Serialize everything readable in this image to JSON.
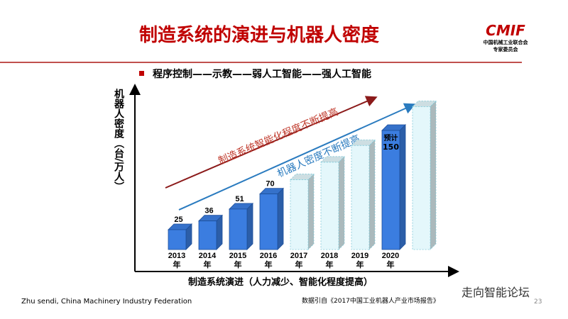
{
  "header": {
    "title": "制造系统的演进与机器人密度",
    "subtitle": "程序控制——示教——弱人工智能——强人工智能",
    "logo": "CMIF",
    "org_line1": "中国机械工业联合会",
    "org_line2": "专家委员会"
  },
  "chart_data": {
    "type": "bar",
    "y_label": "机器人密度（台/万人）",
    "x_label": "制造系统演进（人力减少、智能化程度提高）",
    "categories": [
      "2013年",
      "2014年",
      "2015年",
      "2016年",
      "2017年",
      "2018年",
      "2019年",
      "2020年",
      null
    ],
    "values": [
      25,
      36,
      51,
      70,
      88,
      110,
      131,
      150,
      180
    ],
    "value_labels": [
      "25",
      "36",
      "51",
      "70",
      null,
      null,
      null,
      "150",
      null
    ],
    "forecast_note": "预计",
    "colors": [
      "#3b7de0",
      "#3b7de0",
      "#3b7de0",
      "#3b7de0",
      "#e4f7fb",
      "#e4f7fb",
      "#e4f7fb",
      "#3b7de0",
      "#e4f7fb"
    ],
    "annotations": [
      "制造系统智能化程度不断提高",
      "机器人密度不断提高"
    ]
  },
  "footer": {
    "author": "Zhu sendi, China Machinery Industry Federation",
    "source": "数据引自《2017中国工业机器人产业市场报告》",
    "watermark": "走向智能论坛",
    "page": "23"
  }
}
